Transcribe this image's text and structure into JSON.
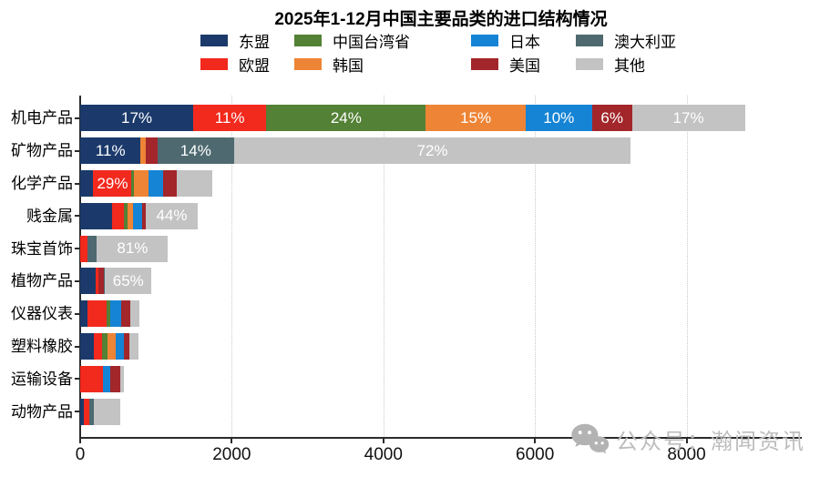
{
  "title": "2025年1-12月中国主要品类的进口结构情况",
  "legend": {
    "rows": [
      [
        "东盟",
        "中国台湾省",
        "日本",
        "澳大利亚"
      ],
      [
        "欧盟",
        "韩国",
        "美国",
        "其他"
      ]
    ]
  },
  "colors": {
    "东盟": "#1b3a6b",
    "欧盟": "#f2291d",
    "中国台湾省": "#538135",
    "韩国": "#ee8435",
    "日本": "#1584d5",
    "美国": "#a2262a",
    "澳大利亚": "#4e6a70",
    "其他": "#c3c3c3",
    "axis": "#2b2b2b",
    "grid": "#c9c9c9",
    "watermark": "#bdbdbd"
  },
  "watermark": {
    "icon": "wechat-icon",
    "text": "公众号：瀚闻资讯"
  },
  "chart_data": {
    "type": "bar",
    "variant": "horizontal-stacked",
    "title": "2025年1-12月中国主要品类的进口结构情况",
    "xlabel": "",
    "ylabel": "",
    "grid": "vertical-dotted",
    "legend_position": "top",
    "x_axis": {
      "min": 0,
      "max": 9520,
      "ticks": [
        0,
        2000,
        4000,
        6000,
        8000
      ]
    },
    "series_order": [
      "东盟",
      "欧盟",
      "中国台湾省",
      "韩国",
      "日本",
      "美国",
      "澳大利亚",
      "其他"
    ],
    "rows": [
      {
        "category": "机电产品",
        "total": 8770,
        "segments": [
          {
            "name": "东盟",
            "pct": 17,
            "label": "17%"
          },
          {
            "name": "欧盟",
            "pct": 11,
            "label": "11%"
          },
          {
            "name": "中国台湾省",
            "pct": 24,
            "label": "24%"
          },
          {
            "name": "韩国",
            "pct": 15,
            "label": "15%"
          },
          {
            "name": "日本",
            "pct": 10,
            "label": "10%"
          },
          {
            "name": "美国",
            "pct": 6,
            "label": "6%"
          },
          {
            "name": "其他",
            "pct": 17,
            "label": "17%"
          }
        ]
      },
      {
        "category": "矿物产品",
        "total": 7260,
        "segments": [
          {
            "name": "东盟",
            "pct": 11,
            "label": "11%"
          },
          {
            "name": "韩国",
            "pct": 1
          },
          {
            "name": "美国",
            "pct": 2
          },
          {
            "name": "澳大利亚",
            "pct": 14,
            "label": "14%"
          },
          {
            "name": "其他",
            "pct": 72,
            "label": "72%"
          }
        ]
      },
      {
        "category": "化学产品",
        "total": 1740,
        "segments": [
          {
            "name": "东盟",
            "pct": 10
          },
          {
            "name": "欧盟",
            "pct": 29,
            "label": "29%"
          },
          {
            "name": "中国台湾省",
            "pct": 2
          },
          {
            "name": "韩国",
            "pct": 11
          },
          {
            "name": "日本",
            "pct": 11
          },
          {
            "name": "美国",
            "pct": 10
          },
          {
            "name": "其他",
            "pct": 27
          }
        ]
      },
      {
        "category": "贱金属",
        "total": 1550,
        "segments": [
          {
            "name": "东盟",
            "pct": 27
          },
          {
            "name": "欧盟",
            "pct": 10
          },
          {
            "name": "中国台湾省",
            "pct": 3
          },
          {
            "name": "韩国",
            "pct": 5
          },
          {
            "name": "日本",
            "pct": 8
          },
          {
            "name": "美国",
            "pct": 3
          },
          {
            "name": "其他",
            "pct": 44,
            "label": "44%"
          }
        ]
      },
      {
        "category": "珠宝首饰",
        "total": 1160,
        "segments": [
          {
            "name": "欧盟",
            "pct": 8
          },
          {
            "name": "澳大利亚",
            "pct": 11
          },
          {
            "name": "其他",
            "pct": 81,
            "label": "81%"
          }
        ]
      },
      {
        "category": "植物产品",
        "total": 940,
        "segments": [
          {
            "name": "东盟",
            "pct": 22
          },
          {
            "name": "欧盟",
            "pct": 3
          },
          {
            "name": "美国",
            "pct": 8
          },
          {
            "name": "澳大利亚",
            "pct": 2
          },
          {
            "name": "其他",
            "pct": 65,
            "label": "65%"
          }
        ]
      },
      {
        "category": "仪器仪表",
        "total": 785,
        "segments": [
          {
            "name": "东盟",
            "pct": 13
          },
          {
            "name": "欧盟",
            "pct": 31
          },
          {
            "name": "中国台湾省",
            "pct": 7
          },
          {
            "name": "日本",
            "pct": 18
          },
          {
            "name": "美国",
            "pct": 16
          },
          {
            "name": "其他",
            "pct": 15
          }
        ]
      },
      {
        "category": "塑料橡胶",
        "total": 775,
        "segments": [
          {
            "name": "东盟",
            "pct": 24
          },
          {
            "name": "欧盟",
            "pct": 14
          },
          {
            "name": "中国台湾省",
            "pct": 9
          },
          {
            "name": "韩国",
            "pct": 14
          },
          {
            "name": "日本",
            "pct": 14
          },
          {
            "name": "美国",
            "pct": 9
          },
          {
            "name": "其他",
            "pct": 16
          }
        ]
      },
      {
        "category": "运输设备",
        "total": 575,
        "segments": [
          {
            "name": "欧盟",
            "pct": 52
          },
          {
            "name": "日本",
            "pct": 17
          },
          {
            "name": "美国",
            "pct": 22
          },
          {
            "name": "其他",
            "pct": 9
          }
        ]
      },
      {
        "category": "动物产品",
        "total": 530,
        "segments": [
          {
            "name": "东盟",
            "pct": 10
          },
          {
            "name": "欧盟",
            "pct": 12
          },
          {
            "name": "澳大利亚",
            "pct": 11
          },
          {
            "name": "其他",
            "pct": 67
          }
        ]
      }
    ]
  }
}
